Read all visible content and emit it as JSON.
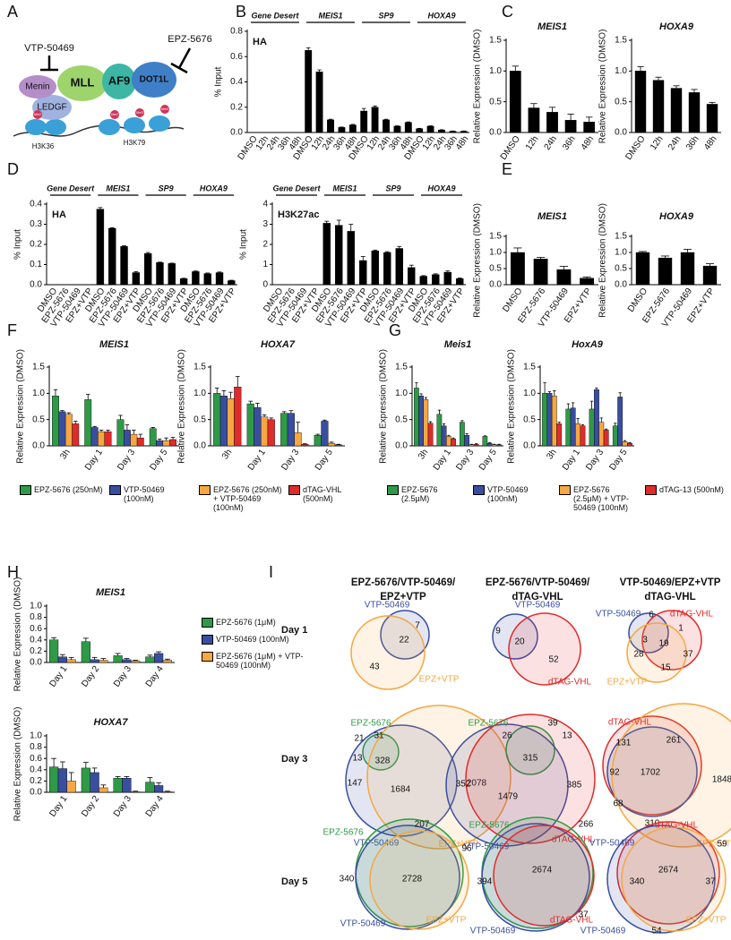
{
  "diagram": {
    "panel": "A",
    "inhibitor_1": "VTP-50469",
    "inhibitor_2": "EPZ-5676",
    "proteins": [
      "Menin",
      "MLL",
      "AF9",
      "DOT1L",
      "LEDGF"
    ],
    "marks": [
      "H3K36",
      "H3K79"
    ],
    "modifications": [
      "Me2",
      "Me3"
    ]
  },
  "chart_data": [
    {
      "type": "bar",
      "panel": "B",
      "inset": "HA",
      "ylabel": "% Input",
      "ylim": [
        0,
        0.8
      ],
      "yticks": [
        {
          "value": 0,
          "label": "0.0"
        },
        0.2,
        0.4,
        0.6,
        0.8
      ],
      "groups": [
        "Gene Desert",
        "MEIS1",
        "SP9",
        "HOXA9"
      ],
      "categories": [
        "DMSO",
        "12h",
        "24h",
        "36h",
        "48h",
        "DMSO",
        "12h",
        "24h",
        "36h",
        "48h",
        "DMSO",
        "12h",
        "24h",
        "36h",
        "48h",
        "DMSO",
        "12h",
        "24h",
        "36h",
        "48h"
      ],
      "color": "#000000",
      "values": [
        0,
        0,
        0,
        0,
        0,
        0.65,
        0.48,
        0.1,
        0.04,
        0.06,
        0.17,
        0.2,
        0.1,
        0.05,
        0.08,
        0.03,
        0.05,
        0.02,
        0.01,
        0.01
      ],
      "errors": [
        0,
        0,
        0,
        0,
        0,
        0.02,
        0.015,
        0.005,
        0.003,
        0.004,
        0.02,
        0.01,
        0.005,
        0.003,
        0.004,
        0.003,
        0.003,
        0.002,
        0.002,
        0.002
      ]
    },
    {
      "type": "bar",
      "panel": "C",
      "title": "MEIS1",
      "ylabel": "Relative Expression (DMSO)",
      "ylim": [
        0,
        1.5
      ],
      "yticks": [
        {
          "value": 0,
          "label": "0.0"
        },
        0.5,
        {
          "value": 1,
          "label": "1.0"
        },
        1.5
      ],
      "categories": [
        "DMSO",
        "12h",
        "24h",
        "36h",
        "48h"
      ],
      "color": "#000000",
      "values": [
        1.0,
        0.4,
        0.33,
        0.2,
        0.17
      ],
      "errors": [
        0.08,
        0.07,
        0.08,
        0.1,
        0.08
      ]
    },
    {
      "type": "bar",
      "title": "HOXA9",
      "ylabel": "Relative Expression (DMSO)",
      "ylim": [
        0,
        1.5
      ],
      "yticks": [
        {
          "value": 0,
          "label": "0.0"
        },
        0.5,
        {
          "value": 1,
          "label": "1.0"
        },
        1.5
      ],
      "categories": [
        "DMSO",
        "12h",
        "24h",
        "36h",
        "48h"
      ],
      "color": "#000000",
      "values": [
        1.0,
        0.85,
        0.72,
        0.65,
        0.46
      ],
      "errors": [
        0.07,
        0.05,
        0.04,
        0.05,
        0.03
      ]
    },
    {
      "type": "bar",
      "panel": "D",
      "inset": "HA",
      "ylabel": "% Input",
      "ylim": [
        0,
        0.4
      ],
      "yticks": [
        {
          "value": 0,
          "label": "0.0"
        },
        0.1,
        0.2,
        0.3,
        0.4
      ],
      "groups": [
        "Gene Desert",
        "MEIS1",
        "SP9",
        "HOXA9"
      ],
      "categories": [
        "DMSO",
        "EPZ-5676",
        "VTP-50469",
        "EPZ+VTP",
        "DMSO",
        "EPZ-5676",
        "VTP-50469",
        "EPZ+VTP",
        "DMSO",
        "EPZ-5676",
        "VTP-50469",
        "EPZ+VTP",
        "DMSO",
        "EPZ-5676",
        "VTP-50469",
        "EPZ+VTP"
      ],
      "color": "#000000",
      "values": [
        0,
        0,
        0,
        0,
        0.375,
        0.28,
        0.19,
        0.06,
        0.155,
        0.11,
        0.105,
        0.03,
        0.065,
        0.055,
        0.06,
        0.02
      ],
      "errors": [
        0,
        0,
        0,
        0,
        0.008,
        0.003,
        0.003,
        0.005,
        0.005,
        0.002,
        0.002,
        0.002,
        0.003,
        0.003,
        0.003,
        0.002
      ]
    },
    {
      "type": "bar",
      "inset": "H3K27ac",
      "ylabel": "% Input",
      "ylim": [
        0,
        4
      ],
      "yticks": [
        0,
        1,
        2,
        3,
        4
      ],
      "groups": [
        "Gene Desert",
        "MEIS1",
        "SP9",
        "HOXA9"
      ],
      "categories": [
        "DMSO",
        "EPZ-5676",
        "VTP-50469",
        "EPZ+VTP",
        "DMSO",
        "EPZ-5676",
        "VTP-50469",
        "EPZ+VTP",
        "DMSO",
        "EPZ-5676",
        "VTP-50469",
        "EPZ+VTP",
        "DMSO",
        "EPZ-5676",
        "VTP-50469",
        "EPZ+VTP"
      ],
      "color": "#000000",
      "values": [
        0,
        0,
        0,
        0,
        3.05,
        2.95,
        2.65,
        1.2,
        1.68,
        1.6,
        1.8,
        0.85,
        0.42,
        0.5,
        0.62,
        0.3
      ],
      "errors": [
        0,
        0,
        0,
        0,
        0.1,
        0.25,
        0.35,
        0.2,
        0.04,
        0.04,
        0.1,
        0.12,
        0.03,
        0.04,
        0.06,
        0.03
      ]
    },
    {
      "type": "bar",
      "panel": "E",
      "title": "MEIS1",
      "ylabel": "Relative Expression (DMSO)",
      "ylim": [
        0,
        1.5
      ],
      "yticks": [
        {
          "value": 0,
          "label": "0.0"
        },
        0.5,
        {
          "value": 1,
          "label": "1.0"
        },
        1.5
      ],
      "categories": [
        "DMSO",
        "EPZ-5676",
        "VTP-50469",
        "EPZ+VTP"
      ],
      "color": "#000000",
      "values": [
        1.0,
        0.8,
        0.47,
        0.2
      ],
      "errors": [
        0.14,
        0.05,
        0.1,
        0.04
      ]
    },
    {
      "type": "bar",
      "title": "HOXA9",
      "ylabel": "Relative Expression (DMSO)",
      "ylim": [
        0,
        1.5
      ],
      "yticks": [
        {
          "value": 0,
          "label": "0.0"
        },
        0.5,
        {
          "value": 1,
          "label": "1.0"
        },
        1.5
      ],
      "categories": [
        "DMSO",
        "EPZ-5676",
        "VTP-50469",
        "EPZ+VTP"
      ],
      "color": "#000000",
      "values": [
        1.0,
        0.83,
        1.0,
        0.58
      ],
      "errors": [
        0.03,
        0.06,
        0.1,
        0.07
      ]
    },
    {
      "type": "bar",
      "panel": "F",
      "title": "MEIS1",
      "ylabel": "Relative Expression (DMSO)",
      "ylim": [
        0,
        1.5
      ],
      "yticks": [
        {
          "value": 0,
          "label": "0.0"
        },
        0.5,
        {
          "value": 1,
          "label": "1.0"
        },
        1.5
      ],
      "categories": [
        "3h",
        "Day 1",
        "Day 3",
        "Day 5"
      ],
      "series": [
        {
          "name": "EPZ-5676 (250nM)",
          "color": "#2e9a47",
          "values": [
            0.95,
            0.88,
            0.5,
            0.33
          ],
          "errors": [
            0.12,
            0.1,
            0.08,
            0.02
          ]
        },
        {
          "name": "VTP-50469 (100nM)",
          "color": "#3a4ea0",
          "values": [
            0.65,
            0.35,
            0.3,
            0.1
          ],
          "errors": [
            0.02,
            0.02,
            0.1,
            0.03
          ]
        },
        {
          "name": "EPZ-5676 (250nM) + VTP-50469 (100nM)",
          "color": "#f5a742",
          "values": [
            0.6,
            0.27,
            0.22,
            0.1
          ],
          "errors": [
            0.03,
            0.03,
            0.08,
            0.05
          ]
        },
        {
          "name": "dTAG-VHL (500nM)",
          "color": "#e02b2b",
          "values": [
            0.42,
            0.27,
            0.15,
            0.12
          ],
          "errors": [
            0.05,
            0.03,
            0.07,
            0.04
          ]
        }
      ]
    },
    {
      "type": "bar",
      "title": "HOXA7",
      "ylabel": "Relative Expression (DMSO)",
      "ylim": [
        0,
        1.5
      ],
      "yticks": [
        {
          "value": 0,
          "label": "0.0"
        },
        0.5,
        {
          "value": 1,
          "label": "1.0"
        },
        1.5
      ],
      "categories": [
        "3h",
        "Day 1",
        "Day 3",
        "Day 5"
      ],
      "series": [
        {
          "color": "#2e9a47",
          "values": [
            1.0,
            0.8,
            0.62,
            0.2
          ],
          "errors": [
            0.1,
            0.05,
            0.03,
            0.02
          ]
        },
        {
          "color": "#3a4ea0",
          "values": [
            0.95,
            0.73,
            0.62,
            0.47
          ],
          "errors": [
            0.1,
            0.08,
            0.05,
            0.02
          ]
        },
        {
          "color": "#f5a742",
          "values": [
            0.9,
            0.55,
            0.25,
            0.05
          ],
          "errors": [
            0.12,
            0.04,
            0.2,
            0.02
          ]
        },
        {
          "color": "#e02b2b",
          "values": [
            1.12,
            0.5,
            0.03,
            0.02
          ],
          "errors": [
            0.2,
            0.03,
            0.01,
            0.01
          ]
        }
      ]
    },
    {
      "type": "bar",
      "panel": "G",
      "title": "Meis1",
      "ylabel": "Relative Expression (DMSO)",
      "ylim": [
        0,
        1.5
      ],
      "yticks": [
        {
          "value": 0,
          "label": "0.0"
        },
        0.5,
        {
          "value": 1,
          "label": "1.0"
        },
        1.5
      ],
      "categories": [
        "3h",
        "Day 1",
        "Day 3",
        "Day 5"
      ],
      "series": [
        {
          "name": "EPZ-5676 (2.5μM)",
          "color": "#2e9a47",
          "values": [
            1.1,
            0.6,
            0.45,
            0.18
          ],
          "errors": [
            0.1,
            0.08,
            0.03,
            0.01
          ]
        },
        {
          "name": "VTP-50469 (100nM)",
          "color": "#3a4ea0",
          "values": [
            0.95,
            0.38,
            0.2,
            0.05
          ],
          "errors": [
            0.04,
            0.04,
            0.03,
            0.01
          ]
        },
        {
          "name": "EPZ-5676 (2.5μM) + VTP-50469 (100nM)",
          "color": "#f5a742",
          "values": [
            0.88,
            0.18,
            0.02,
            0.02
          ],
          "errors": [
            0.04,
            0.02,
            0.01,
            0.01
          ]
        },
        {
          "name": "dTAG-13 (500nM)",
          "color": "#e02b2b",
          "values": [
            0.43,
            0.13,
            0.03,
            0.02
          ],
          "errors": [
            0.03,
            0.02,
            0.01,
            0.01
          ]
        }
      ]
    },
    {
      "type": "bar",
      "title": "HoxA9",
      "ylabel": "Relative Expression (DMSO)",
      "ylim": [
        0,
        1.5
      ],
      "yticks": [
        {
          "value": 0,
          "label": "0.0"
        },
        0.5,
        {
          "value": 1,
          "label": "1.0"
        },
        1.5
      ],
      "categories": [
        "3h",
        "Day 1",
        "Day 3",
        "Day 5"
      ],
      "series": [
        {
          "color": "#2e9a47",
          "values": [
            1.0,
            0.7,
            0.7,
            0.38
          ],
          "errors": [
            0.2,
            0.1,
            0.15,
            0.05
          ]
        },
        {
          "color": "#3a4ea0",
          "values": [
            1.0,
            0.72,
            1.07,
            0.93
          ],
          "errors": [
            0.03,
            0.1,
            0.03,
            0.08
          ]
        },
        {
          "color": "#f5a742",
          "values": [
            0.95,
            0.42,
            0.45,
            0.08
          ],
          "errors": [
            0.1,
            0.1,
            0.08,
            0.02
          ]
        },
        {
          "color": "#e02b2b",
          "values": [
            0.42,
            0.38,
            0.3,
            0.05
          ],
          "errors": [
            0.03,
            0.02,
            0.02,
            0.01
          ]
        }
      ]
    },
    {
      "type": "bar",
      "panel": "H",
      "title": "MEIS1",
      "ylabel": "Relative Expression (DMSO)",
      "ylim": [
        0,
        1
      ],
      "yticks": [
        {
          "value": 0,
          "label": "0.0"
        },
        0.2,
        0.4,
        0.6,
        0.8,
        {
          "value": 1,
          "label": "1.0"
        }
      ],
      "categories": [
        "Day 1",
        "Day 2",
        "Day 3",
        "Day 4"
      ],
      "series": [
        {
          "name": "EPZ-5676 (1μM)",
          "color": "#2e9a47",
          "values": [
            0.4,
            0.37,
            0.12,
            0.1
          ],
          "errors": [
            0.04,
            0.06,
            0.04,
            0.03
          ]
        },
        {
          "name": "VTP-50469 (100nM)",
          "color": "#3a4ea0",
          "values": [
            0.1,
            0.05,
            0.05,
            0.16
          ],
          "errors": [
            0.04,
            0.04,
            0.02,
            0.03
          ]
        },
        {
          "name": "EPZ-5676 (1μM) + VTP-50469 (100nM)",
          "color": "#f5a742",
          "values": [
            0.05,
            0.04,
            0.03,
            0.04
          ],
          "errors": [
            0.04,
            0.03,
            0.01,
            0.02
          ]
        }
      ]
    },
    {
      "type": "bar",
      "title": "HOXA7",
      "ylabel": "Relative Expression (DMSO)",
      "ylim": [
        0,
        1
      ],
      "yticks": [
        {
          "value": 0,
          "label": "0.0"
        },
        0.2,
        0.4,
        0.6,
        0.8,
        {
          "value": 1,
          "label": "1.0"
        }
      ],
      "categories": [
        "Day 1",
        "Day 2",
        "Day 3",
        "Day 4"
      ],
      "series": [
        {
          "color": "#2e9a47",
          "values": [
            0.45,
            0.43,
            0.25,
            0.18
          ],
          "errors": [
            0.15,
            0.1,
            0.03,
            0.08
          ]
        },
        {
          "color": "#3a4ea0",
          "values": [
            0.42,
            0.35,
            0.25,
            0.12
          ],
          "errors": [
            0.12,
            0.08,
            0.03,
            0.05
          ]
        },
        {
          "color": "#f5a742",
          "values": [
            0.2,
            0.08,
            0.01,
            0.01
          ],
          "errors": [
            0.15,
            0.05,
            0.01,
            0.01
          ]
        }
      ]
    },
    {
      "type": "venn",
      "panel": "I",
      "title": [
        "EPZ-5676/VTP-50469/",
        "EPZ+VTP"
      ],
      "row_label": "Day 1",
      "sets": [
        {
          "name": "VTP-50469",
          "color": "#3a4ea0"
        },
        {
          "name": "EPZ+VTP",
          "color": "#f5a742"
        }
      ],
      "counts": [
        7,
        22,
        43
      ]
    },
    {
      "type": "venn",
      "title": [
        "EPZ-5676/VTP-50469/",
        "dTAG-VHL"
      ],
      "sets": [
        {
          "name": "VTP-50469",
          "color": "#3a4ea0"
        },
        {
          "name": "dTAG-VHL",
          "color": "#e02b2b"
        }
      ],
      "counts": [
        9,
        20,
        52
      ]
    },
    {
      "type": "venn",
      "title": [
        "VTP-50469/EPZ+VTP",
        "dTAG-VHL"
      ],
      "sets": [
        {
          "name": "VTP-50469",
          "color": "#3a4ea0"
        },
        {
          "name": "dTAG-VHL",
          "color": "#e02b2b"
        },
        {
          "name": "EPZ+VTP",
          "color": "#f5a742"
        }
      ],
      "counts": [
        6,
        1,
        3,
        19,
        28,
        15,
        37
      ]
    },
    {
      "type": "venn",
      "row_label": "Day 3",
      "sets": [
        {
          "name": "EPZ-5676",
          "color": "#2e9a47"
        },
        {
          "name": "VTP-50469",
          "color": "#3a4ea0"
        },
        {
          "name": "EPZ+VTP",
          "color": "#f5a742"
        }
      ],
      "counts": [
        21,
        31,
        13,
        328,
        147,
        1684,
        2078
      ]
    },
    {
      "type": "venn",
      "sets": [
        {
          "name": "EPZ-5676",
          "color": "#2e9a47"
        },
        {
          "name": "VTP-50469",
          "color": "#3a4ea0"
        },
        {
          "name": "dTAG-VHL",
          "color": "#e02b2b"
        }
      ],
      "counts": [
        26,
        39,
        13,
        315,
        352,
        1479,
        385
      ]
    },
    {
      "type": "venn",
      "sets": [
        {
          "name": "dTAG-VHL",
          "color": "#e02b2b"
        },
        {
          "name": "VTP-50469",
          "color": "#3a4ea0"
        },
        {
          "name": "EPZ+VTP",
          "color": "#f5a742"
        }
      ],
      "counts": [
        131,
        261,
        92,
        1702,
        68,
        310,
        1848
      ]
    },
    {
      "type": "venn",
      "row_label": "Day 5",
      "sets": [
        {
          "name": "EPZ-5676",
          "color": "#2e9a47"
        },
        {
          "name": "VTP-50469",
          "color": "#3a4ea0"
        },
        {
          "name": "EPZ+VTP",
          "color": "#f5a742"
        }
      ],
      "counts": [
        207,
        96,
        340,
        2728
      ]
    },
    {
      "type": "venn",
      "sets": [
        {
          "name": "EPZ-5676",
          "color": "#2e9a47"
        },
        {
          "name": "VTP-50469",
          "color": "#3a4ea0"
        },
        {
          "name": "dTAG-VHL",
          "color": "#e02b2b"
        }
      ],
      "counts": [
        266,
        394,
        2674,
        37
      ]
    },
    {
      "type": "venn",
      "sets": [
        {
          "name": "dTAG-VHL",
          "color": "#e02b2b"
        },
        {
          "name": "VTP-50469",
          "color": "#3a4ea0"
        },
        {
          "name": "EPZ+VTP",
          "color": "#f5a742"
        }
      ],
      "counts": [
        59,
        37,
        340,
        2674,
        54
      ]
    }
  ]
}
